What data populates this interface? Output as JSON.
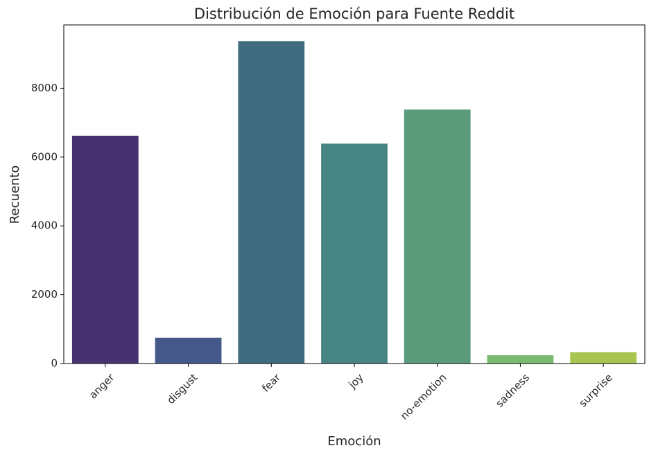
{
  "chart_data": {
    "type": "bar",
    "title": "Distribución de Emoción para Fuente Reddit",
    "xlabel": "Emoción",
    "ylabel": "Recuento",
    "categories": [
      "anger",
      "disgust",
      "fear",
      "joy",
      "no-emotion",
      "sadness",
      "surprise"
    ],
    "values": [
      6620,
      750,
      9370,
      6390,
      7380,
      240,
      330
    ],
    "ylim": [
      0,
      9840
    ],
    "yticks": [
      0,
      2000,
      4000,
      6000,
      8000
    ],
    "ytick_labels": [
      "0",
      "2000",
      "4000",
      "6000",
      "8000"
    ],
    "colors": [
      "#46326e",
      "#46588a",
      "#416c7f",
      "#468581",
      "#5a9b7c",
      "#78bb6e",
      "#a8c550"
    ],
    "grid": false,
    "legend": "none"
  }
}
